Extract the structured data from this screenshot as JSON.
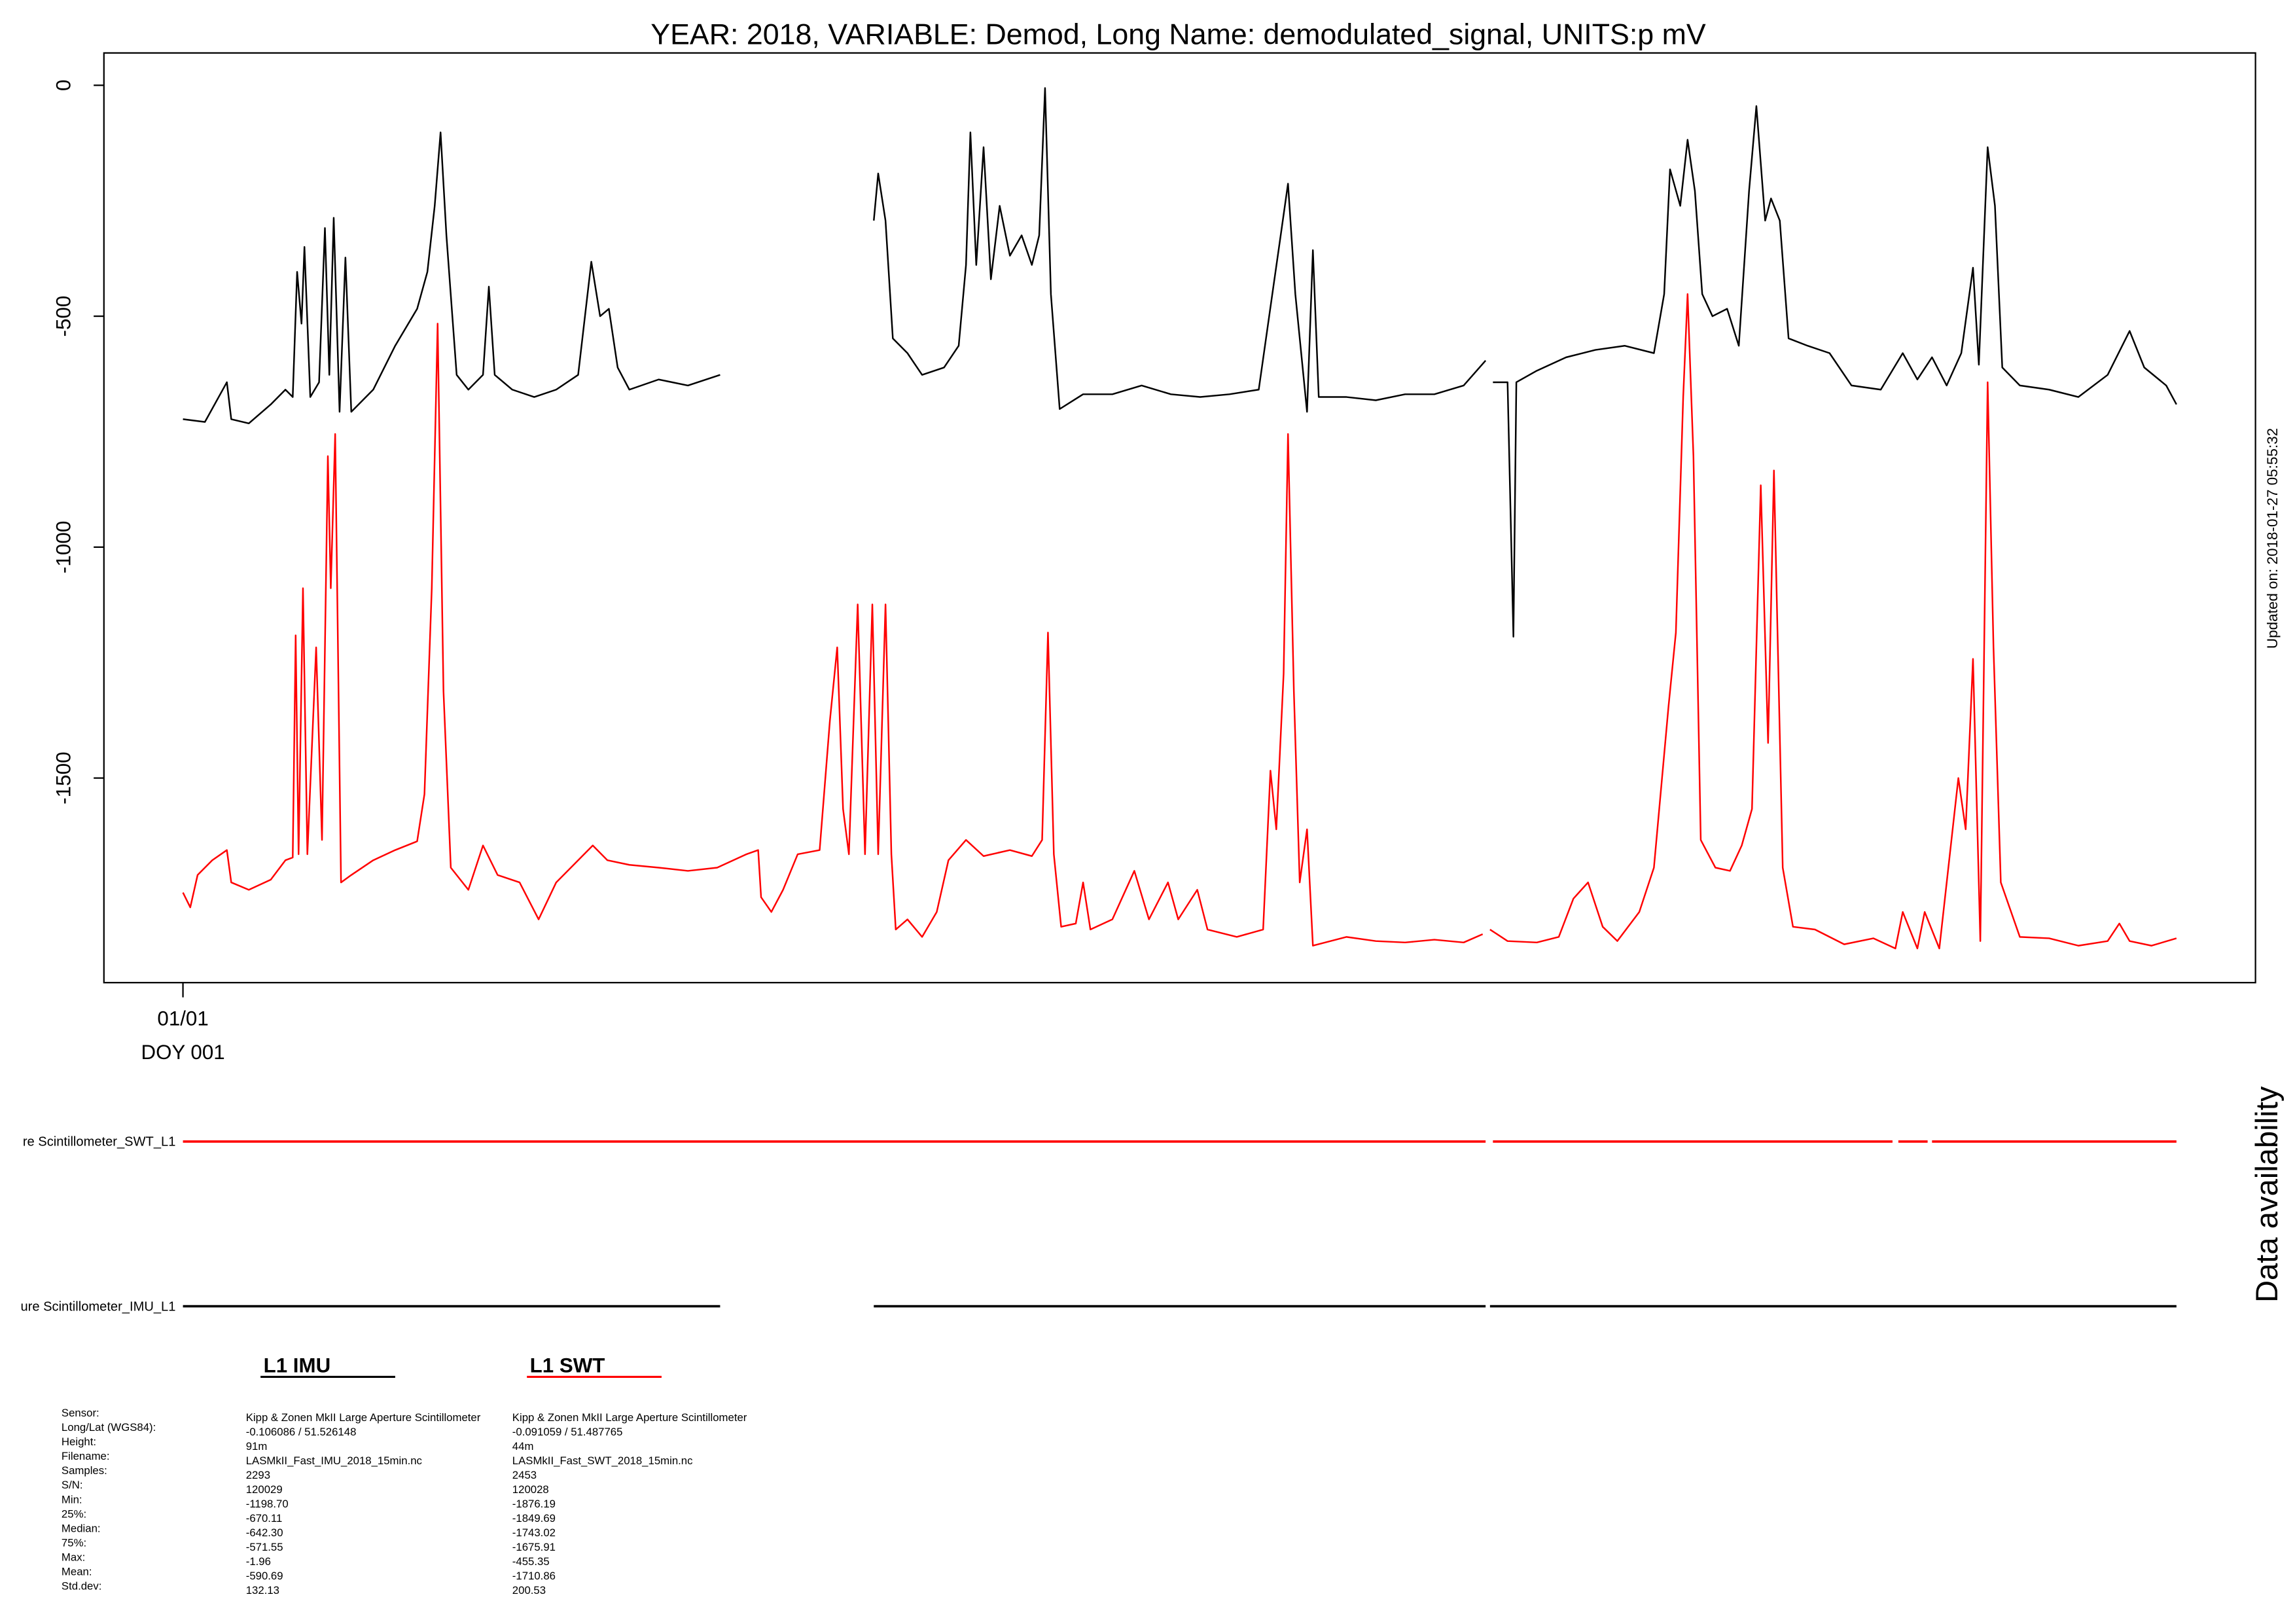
{
  "chart_data": {
    "type": "line",
    "title": "YEAR: 2018, VARIABLE: Demod, Long Name: demodulated_signal, UNITS:p mV",
    "updated": "Updated on: 2018-01-27 05:55:32",
    "xlim": [
      -1.08,
      28.32
    ],
    "ylim": [
      -1943,
      70
    ],
    "xticks": [
      {
        "value": 0,
        "label": "01/01",
        "sublabel": "DOY 001"
      }
    ],
    "yticks": [
      0,
      -500,
      -1000,
      -1500
    ],
    "series": [
      {
        "name": "L1 IMU",
        "color": "#000000",
        "x": [
          0,
          0.3,
          0.6,
          0.66,
          0.9,
          1.2,
          1.4,
          1.5,
          1.56,
          1.62,
          1.66,
          1.74,
          1.86,
          1.94,
          2,
          2.06,
          2.14,
          2.22,
          2.3,
          2.6,
          2.9,
          3.2,
          3.34,
          3.44,
          3.52,
          3.6,
          3.74,
          3.9,
          4.1,
          4.18,
          4.26,
          4.5,
          4.8,
          5.1,
          5.4,
          5.58,
          5.7,
          5.82,
          5.94,
          6.1,
          6.5,
          6.9,
          7.34,
          null,
          9.44,
          9.5,
          9.6,
          9.7,
          9.9,
          10.1,
          10.4,
          10.6,
          10.7,
          10.76,
          10.84,
          10.94,
          11.04,
          11.16,
          11.3,
          11.46,
          11.6,
          11.7,
          11.78,
          11.86,
          11.98,
          12.3,
          12.7,
          13.1,
          13.5,
          13.9,
          14.3,
          14.7,
          14.9,
          15,
          15.1,
          15.2,
          15.36,
          15.44,
          15.52,
          15.9,
          16.3,
          16.7,
          17.1,
          17.5,
          17.8,
          null,
          17.9,
          18.1,
          18.18,
          18.22,
          18.5,
          18.9,
          19.3,
          19.7,
          20.1,
          20.24,
          20.32,
          20.46,
          20.56,
          20.66,
          20.76,
          20.9,
          21.1,
          21.26,
          21.4,
          21.5,
          21.62,
          21.7,
          21.82,
          21.94,
          22.2,
          22.5,
          22.8,
          23.2,
          23.5,
          23.7,
          23.9,
          24.1,
          24.3,
          24.46,
          24.54,
          24.66,
          24.76,
          24.86,
          25.1,
          25.5,
          25.9,
          26.3,
          26.6,
          26.8,
          27.1,
          27.24
        ],
        "values": [
          -723,
          -729,
          -643,
          -723,
          -732,
          -691,
          -659,
          -675,
          -404,
          -516,
          -350,
          -675,
          -643,
          -309,
          -627,
          -287,
          -707,
          -373,
          -707,
          -659,
          -564,
          -484,
          -404,
          -261,
          -102,
          -325,
          -627,
          -659,
          -627,
          -436,
          -627,
          -659,
          -675,
          -659,
          -627,
          -382,
          -500,
          -484,
          -611,
          -659,
          -637,
          -650,
          -627,
          null,
          -293,
          -191,
          -293,
          -548,
          -580,
          -627,
          -611,
          -564,
          -389,
          -102,
          -389,
          -134,
          -420,
          -261,
          -369,
          -325,
          -389,
          -325,
          -6,
          -452,
          -701,
          -669,
          -669,
          -650,
          -669,
          -675,
          -669,
          -659,
          -436,
          -325,
          -213,
          -452,
          -707,
          -357,
          -675,
          -675,
          -682,
          -669,
          -669,
          -650,
          -596,
          null,
          -643,
          -643,
          -1194,
          -643,
          -618,
          -589,
          -573,
          -564,
          -580,
          -452,
          -182,
          -261,
          -118,
          -229,
          -452,
          -500,
          -484,
          -564,
          -229,
          -45,
          -293,
          -245,
          -293,
          -548,
          -564,
          -580,
          -650,
          -659,
          -580,
          -637,
          -589,
          -650,
          -580,
          -395,
          -605,
          -134,
          -261,
          -611,
          -650,
          -659,
          -675,
          -627,
          -532,
          -611,
          -650,
          -691
        ]
      },
      {
        "name": "L1 SWT",
        "color": "#ff0000",
        "x": [
          0,
          0.1,
          0.2,
          0.4,
          0.6,
          0.66,
          0.9,
          1.2,
          1.4,
          1.5,
          1.54,
          1.58,
          1.64,
          1.7,
          1.82,
          1.9,
          1.98,
          2.02,
          2.08,
          2.16,
          2.3,
          2.6,
          2.9,
          3.2,
          3.3,
          3.4,
          3.48,
          3.56,
          3.66,
          3.9,
          4.1,
          4.3,
          4.6,
          4.86,
          5.1,
          5.4,
          5.6,
          5.8,
          6.1,
          6.5,
          6.9,
          7.3,
          7.7,
          7.86,
          7.9,
          8.04,
          8.2,
          8.4,
          8.7,
          8.84,
          8.94,
          9.02,
          9.1,
          9.22,
          9.32,
          9.42,
          9.5,
          9.6,
          9.68,
          9.74,
          9.9,
          10.1,
          10.3,
          10.46,
          10.7,
          10.94,
          11.3,
          11.6,
          11.74,
          11.82,
          11.9,
          12,
          12.2,
          12.3,
          12.4,
          12.7,
          13,
          13.2,
          13.46,
          13.6,
          13.86,
          14,
          14.4,
          14.76,
          14.86,
          14.94,
          15.04,
          15.1,
          15.18,
          15.26,
          15.36,
          15.44,
          15.9,
          16.3,
          16.7,
          17.1,
          17.5,
          17.76,
          null,
          17.86,
          18.1,
          18.5,
          18.8,
          19,
          19.2,
          19.4,
          19.6,
          19.9,
          20.1,
          20.3,
          20.4,
          20.5,
          20.56,
          20.64,
          20.74,
          20.94,
          21.14,
          21.3,
          21.44,
          21.56,
          21.66,
          21.74,
          21.86,
          22,
          22.3,
          22.7,
          23.1,
          23.4,
          23.5,
          23.7,
          23.8,
          24,
          24.26,
          24.36,
          24.46,
          24.56,
          24.66,
          24.74,
          24.84,
          25.1,
          25.5,
          25.9,
          26.3,
          26.46,
          26.6,
          26.9,
          27.24
        ],
        "values": [
          -1748,
          -1780,
          -1710,
          -1678,
          -1656,
          -1726,
          -1742,
          -1720,
          -1678,
          -1672,
          -1191,
          -1665,
          -1089,
          -1665,
          -1217,
          -1634,
          -803,
          -1089,
          -755,
          -1726,
          -1710,
          -1678,
          -1656,
          -1637,
          -1535,
          -1089,
          -516,
          -1312,
          -1694,
          -1742,
          -1646,
          -1710,
          -1726,
          -1806,
          -1726,
          -1678,
          -1646,
          -1678,
          -1688,
          -1694,
          -1701,
          -1694,
          -1665,
          -1656,
          -1758,
          -1790,
          -1742,
          -1665,
          -1656,
          -1376,
          -1217,
          -1567,
          -1665,
          -1124,
          -1665,
          -1124,
          -1665,
          -1124,
          -1665,
          -1828,
          -1806,
          -1844,
          -1790,
          -1678,
          -1634,
          -1669,
          -1656,
          -1669,
          -1634,
          -1185,
          -1665,
          -1822,
          -1815,
          -1726,
          -1828,
          -1806,
          -1701,
          -1806,
          -1726,
          -1806,
          -1742,
          -1828,
          -1844,
          -1828,
          -1484,
          -1611,
          -1274,
          -755,
          -1312,
          -1726,
          -1611,
          -1863,
          -1844,
          -1853,
          -1856,
          -1850,
          -1856,
          -1838,
          null,
          -1828,
          -1853,
          -1856,
          -1844,
          -1761,
          -1726,
          -1822,
          -1853,
          -1790,
          -1694,
          -1344,
          -1185,
          -675,
          -452,
          -803,
          -1634,
          -1694,
          -1701,
          -1646,
          -1567,
          -866,
          -1424,
          -834,
          -1694,
          -1822,
          -1828,
          -1860,
          -1847,
          -1869,
          -1790,
          -1869,
          -1790,
          -1869,
          -1500,
          -1611,
          -1242,
          -1853,
          -643,
          -1217,
          -1726,
          -1844,
          -1847,
          -1863,
          -1853,
          -1815,
          -1853,
          -1863,
          -1847
        ]
      }
    ],
    "availability": {
      "title": "Data availability",
      "rows": [
        {
          "label": "re Scintillometer_SWT_L1",
          "color": "#ff0000",
          "segments": [
            [
              0,
              17.8
            ],
            [
              17.9,
              23.36
            ],
            [
              23.44,
              23.84
            ],
            [
              23.9,
              27.24
            ]
          ]
        },
        {
          "label": "ure Scintillometer_IMU_L1",
          "color": "#000000",
          "segments": [
            [
              0,
              7.34
            ],
            [
              9.44,
              17.8
            ],
            [
              17.86,
              27.24
            ]
          ]
        }
      ]
    },
    "stats": {
      "labels": [
        "Sensor:",
        "Long/Lat (WGS84):",
        "Height:",
        "Filename:",
        "Samples:",
        "S/N:",
        "Min:",
        "25%:",
        "Median:",
        "75%:",
        "Max:",
        "Mean:",
        "Std.dev:"
      ],
      "columns": [
        [
          "Kipp & Zonen MkII Large Aperture Scintillometer",
          " -0.106086 / 51.526148",
          "91m",
          "LASMkII_Fast_IMU_2018_15min.nc",
          "2293",
          "120029",
          "-1198.70",
          "-670.11",
          "-642.30",
          "-571.55",
          "-1.96",
          "-590.69",
          "132.13"
        ],
        [
          "Kipp & Zonen MkII Large Aperture Scintillometer",
          " -0.091059 / 51.487765",
          "44m",
          "LASMkII_Fast_SWT_2018_15min.nc",
          "2453",
          "120028",
          "-1876.19",
          "-1849.69",
          "-1743.02",
          "-1675.91",
          "-455.35",
          "-1710.86",
          "200.53"
        ]
      ]
    }
  }
}
